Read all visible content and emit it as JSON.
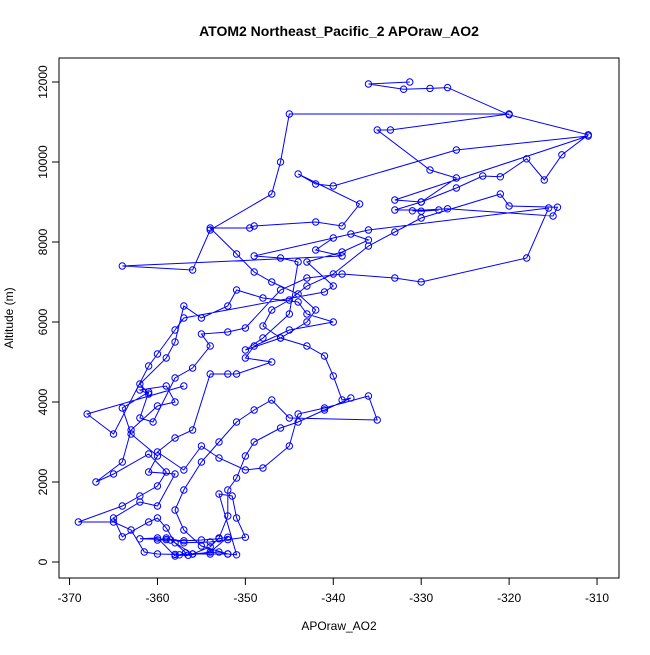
{
  "chart_data": {
    "type": "line",
    "title": "ATOM2 Northeast_Pacific_2 APOraw_AO2",
    "xlabel": "APOraw_AO2",
    "ylabel": "Altitude (m)",
    "xlim": [
      -371.2,
      -307.5
    ],
    "ylim": [
      -400,
      12600
    ],
    "xticks": [
      -370,
      -360,
      -350,
      -340,
      -330,
      -320,
      -310
    ],
    "yticks": [
      0,
      2000,
      4000,
      6000,
      8000,
      10000,
      12000
    ],
    "grid": false,
    "series_color": "#0000ff",
    "marker": "open-circle",
    "points": [
      [
        -331.3,
        12000
      ],
      [
        -336,
        11950
      ],
      [
        -332,
        11820
      ],
      [
        -329,
        11840
      ],
      [
        -327,
        11860
      ],
      [
        -320,
        11180
      ],
      [
        -311,
        10680
      ],
      [
        -314,
        10180
      ],
      [
        -316,
        9550
      ],
      [
        -318,
        10080
      ],
      [
        -321,
        9630
      ],
      [
        -323,
        9650
      ],
      [
        -326,
        9350
      ],
      [
        -330,
        9000
      ],
      [
        -333,
        8800
      ],
      [
        -328,
        8800
      ],
      [
        -330,
        8770
      ],
      [
        -331,
        8780
      ],
      [
        -327,
        8830
      ],
      [
        -315,
        8650
      ],
      [
        -314.5,
        8870
      ],
      [
        -320,
        8900
      ],
      [
        -321,
        9200
      ],
      [
        -330,
        8600
      ],
      [
        -333,
        8250
      ],
      [
        -336,
        7900
      ],
      [
        -340,
        7200
      ],
      [
        -343,
        6900
      ],
      [
        -345,
        6550
      ],
      [
        -347,
        6300
      ],
      [
        -348,
        5900
      ],
      [
        -346,
        5600
      ],
      [
        -343,
        5400
      ],
      [
        -341,
        5150
      ],
      [
        -340,
        4650
      ],
      [
        -339,
        4050
      ],
      [
        -338,
        4100
      ],
      [
        -341,
        3800
      ],
      [
        -344,
        3500
      ],
      [
        -346,
        3350
      ],
      [
        -349,
        3000
      ],
      [
        -350,
        2650
      ],
      [
        -351,
        2100
      ],
      [
        -352,
        1800
      ],
      [
        -352,
        1150
      ],
      [
        -353,
        600
      ],
      [
        -354,
        380
      ],
      [
        -356,
        200
      ],
      [
        -358,
        150
      ],
      [
        -360,
        600
      ],
      [
        -362,
        580
      ],
      [
        -359,
        560
      ],
      [
        -357,
        530
      ],
      [
        -355,
        550
      ],
      [
        -353,
        580
      ],
      [
        -352,
        620
      ],
      [
        -354,
        250
      ],
      [
        -356.5,
        170
      ],
      [
        -358,
        190
      ],
      [
        -360,
        200
      ],
      [
        -361.5,
        250
      ],
      [
        -363,
        800
      ],
      [
        -365,
        1000
      ],
      [
        -369,
        1000
      ],
      [
        -364,
        1400
      ],
      [
        -362,
        1650
      ],
      [
        -360,
        1900
      ],
      [
        -359,
        2250
      ],
      [
        -361,
        2700
      ],
      [
        -365,
        2200
      ],
      [
        -367,
        2000
      ],
      [
        -364,
        2500
      ],
      [
        -363,
        3300
      ],
      [
        -360,
        3900
      ],
      [
        -358,
        4000
      ],
      [
        -359,
        4400
      ],
      [
        -362,
        4300
      ],
      [
        -361,
        4200
      ],
      [
        -362,
        4450
      ],
      [
        -359,
        5100
      ],
      [
        -358,
        5500
      ],
      [
        -357,
        6400
      ],
      [
        -355,
        6100
      ],
      [
        -352,
        6400
      ],
      [
        -351,
        6800
      ],
      [
        -348,
        6600
      ],
      [
        -344,
        6500
      ],
      [
        -343,
        6200
      ],
      [
        -340,
        6000
      ],
      [
        -345,
        5800
      ],
      [
        -349,
        5400
      ],
      [
        -350,
        5100
      ],
      [
        -347,
        5000
      ],
      [
        -351,
        4700
      ],
      [
        -352,
        4700
      ],
      [
        -354,
        4700
      ],
      [
        -356,
        3300
      ],
      [
        -358,
        3100
      ],
      [
        -360,
        2750
      ],
      [
        -357,
        2300
      ],
      [
        -355,
        2900
      ],
      [
        -353,
        2600
      ],
      [
        -350,
        2300
      ],
      [
        -348,
        2350
      ],
      [
        -345,
        2900
      ],
      [
        -344,
        3700
      ],
      [
        -341,
        3850
      ],
      [
        -336,
        4150
      ],
      [
        -335,
        3550
      ],
      [
        -345,
        3600
      ],
      [
        -347,
        4050
      ],
      [
        -349,
        3800
      ],
      [
        -351,
        3500
      ],
      [
        -353,
        3000
      ],
      [
        -355,
        2500
      ],
      [
        -357,
        1800
      ],
      [
        -358,
        1300
      ],
      [
        -357,
        800
      ],
      [
        -355,
        400
      ],
      [
        -352,
        200
      ],
      [
        -351,
        180
      ],
      [
        -353,
        1700
      ],
      [
        -351.5,
        1650
      ],
      [
        -351,
        1100
      ],
      [
        -350,
        620
      ],
      [
        -352,
        560
      ],
      [
        -354,
        500
      ],
      [
        -357,
        480
      ],
      [
        -359,
        600
      ],
      [
        -360,
        550
      ],
      [
        -358.5,
        550
      ],
      [
        -356,
        200
      ],
      [
        -354,
        200
      ],
      [
        -352,
        200
      ],
      [
        -353,
        250
      ],
      [
        -357.5,
        180
      ],
      [
        -356.8,
        230
      ],
      [
        -358,
        480
      ],
      [
        -359,
        850
      ],
      [
        -360,
        1100
      ],
      [
        -361,
        1000
      ],
      [
        -364,
        630
      ],
      [
        -365,
        1100
      ],
      [
        -362,
        1500
      ],
      [
        -360,
        1400
      ],
      [
        -358,
        2200
      ],
      [
        -361,
        2250
      ],
      [
        -360,
        2650
      ],
      [
        -363,
        3200
      ],
      [
        -364,
        3850
      ],
      [
        -361,
        4250
      ],
      [
        -362,
        3600
      ],
      [
        -360.5,
        3500
      ],
      [
        -358,
        4600
      ],
      [
        -356,
        4850
      ],
      [
        -354,
        5400
      ],
      [
        -355,
        5700
      ],
      [
        -352,
        5750
      ],
      [
        -350,
        5850
      ],
      [
        -346,
        6800
      ],
      [
        -343,
        7100
      ],
      [
        -339,
        7200
      ],
      [
        -333,
        7100
      ],
      [
        -330,
        7000
      ],
      [
        -318,
        7600
      ],
      [
        -315.5,
        8850
      ],
      [
        -336,
        8300
      ],
      [
        -349,
        7650
      ],
      [
        -346,
        7600
      ],
      [
        -344,
        7500
      ],
      [
        -345,
        6200
      ],
      [
        -348,
        5600
      ],
      [
        -350,
        5300
      ],
      [
        -346,
        5600
      ],
      [
        -343,
        6000
      ],
      [
        -342,
        6300
      ],
      [
        -344,
        6700
      ],
      [
        -347,
        7000
      ],
      [
        -349,
        7250
      ],
      [
        -351,
        7700
      ],
      [
        -354,
        8350
      ],
      [
        -349.5,
        8350
      ],
      [
        -349,
        8400
      ],
      [
        -342,
        8500
      ],
      [
        -339,
        8400
      ],
      [
        -337,
        8950
      ],
      [
        -344,
        9700
      ],
      [
        -342,
        9450
      ],
      [
        -340,
        9400
      ],
      [
        -326,
        10300
      ],
      [
        -311,
        10650
      ],
      [
        -333,
        9050
      ],
      [
        -330,
        9000
      ],
      [
        -326,
        9600
      ],
      [
        -329,
        9800
      ],
      [
        -335,
        10800
      ],
      [
        -333.5,
        10800
      ],
      [
        -320,
        11200
      ],
      [
        -345,
        11200
      ],
      [
        -346,
        10000
      ],
      [
        -347,
        9200
      ],
      [
        -354,
        8300
      ],
      [
        -356,
        7300
      ],
      [
        -364,
        7400
      ],
      [
        -339,
        7650
      ],
      [
        -342,
        7800
      ],
      [
        -340,
        8100
      ],
      [
        -338,
        8200
      ],
      [
        -336,
        8050
      ],
      [
        -339,
        7750
      ],
      [
        -343,
        7500
      ],
      [
        -340,
        6900
      ],
      [
        -341,
        6750
      ],
      [
        -357,
        6100
      ],
      [
        -358,
        5800
      ],
      [
        -360,
        5200
      ],
      [
        -361,
        4900
      ],
      [
        -365,
        3200
      ],
      [
        -368,
        3700
      ],
      [
        -357,
        4400
      ]
    ]
  }
}
